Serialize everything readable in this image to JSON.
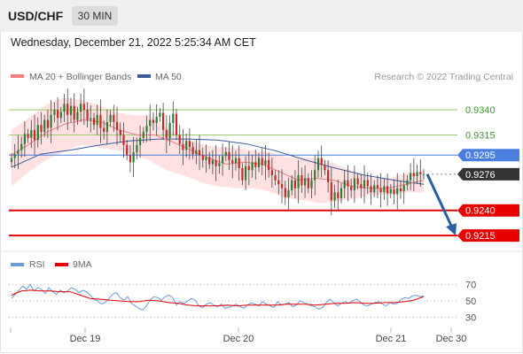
{
  "header": {
    "symbol": "USD/CHF",
    "timeframe": "30 MIN",
    "datetime": "Wednesday, December 21, 2022 5:25:34 AM CET"
  },
  "legend": {
    "ma20_label": "MA 20 + Bollinger Bands",
    "ma50_label": "MA 50",
    "credit": "Research © 2022 Trading Central",
    "rsi_label": "RSI",
    "ma9_label": "9MA"
  },
  "colors": {
    "candle_up": "#2e7d32",
    "candle_down": "#c62828",
    "bollinger_band": "#ffd9d9",
    "ma20": "#f08080",
    "ma50": "#3a5ba0",
    "resistance": "#9acd6e",
    "pivot": "#4a7fe0",
    "support": "#e60000",
    "current_price": "#333333",
    "rsi": "#6a9bd8",
    "rsi_ma9": "#e60000",
    "forecast_arrow": "#2a5fa8"
  },
  "chart_data": [
    {
      "type": "candlestick",
      "title": "USD/CHF 30 MIN",
      "x_ticks": [
        "Dec 19",
        "Dec 20",
        "Dec 21",
        "Dec 30"
      ],
      "ylim": [
        0.9201,
        0.9363
      ],
      "current_price": 0.9276,
      "levels": [
        {
          "label": "0.9340",
          "value": 0.934,
          "kind": "resistance"
        },
        {
          "label": "0.9315",
          "value": 0.9315,
          "kind": "resistance"
        },
        {
          "label": "0.9295",
          "value": 0.9295,
          "kind": "pivot"
        },
        {
          "label": "0.9276",
          "value": 0.9276,
          "kind": "current"
        },
        {
          "label": "0.9240",
          "value": 0.924,
          "kind": "support"
        },
        {
          "label": "0.9215",
          "value": 0.9215,
          "kind": "support"
        }
      ],
      "forecast_arrow": {
        "from": 0.9276,
        "to": 0.9215
      },
      "close_series": [
        0.9292,
        0.9296,
        0.93,
        0.9306,
        0.9316,
        0.9312,
        0.932,
        0.931,
        0.9325,
        0.9318,
        0.933,
        0.9322,
        0.9335,
        0.934,
        0.9332,
        0.9338,
        0.9346,
        0.9335,
        0.9344,
        0.933,
        0.9338,
        0.9346,
        0.934,
        0.933,
        0.9332,
        0.9325,
        0.9335,
        0.9322,
        0.9318,
        0.9328,
        0.9335,
        0.9328,
        0.932,
        0.9315,
        0.9305,
        0.9295,
        0.9288,
        0.9298,
        0.9305,
        0.9312,
        0.9318,
        0.9324,
        0.933,
        0.9327,
        0.9333,
        0.9337,
        0.932,
        0.9312,
        0.9327,
        0.9336,
        0.9315,
        0.9306,
        0.93,
        0.9309,
        0.9303,
        0.9296,
        0.93,
        0.9295,
        0.929,
        0.9293,
        0.9286,
        0.929,
        0.9284,
        0.9287,
        0.9294,
        0.9298,
        0.929,
        0.9287,
        0.9292,
        0.9282,
        0.927,
        0.9284,
        0.928,
        0.9288,
        0.9283,
        0.9292,
        0.9285,
        0.929,
        0.928,
        0.9275,
        0.927,
        0.9266,
        0.9262,
        0.9253,
        0.926,
        0.927,
        0.9262,
        0.9275,
        0.9265,
        0.9272,
        0.9262,
        0.927,
        0.928,
        0.9292,
        0.9285,
        0.928,
        0.9268,
        0.925,
        0.9258,
        0.9252,
        0.9262,
        0.927,
        0.9264,
        0.926,
        0.9272,
        0.9266,
        0.9262,
        0.927,
        0.9264,
        0.9258,
        0.9265,
        0.9262,
        0.9258,
        0.9264,
        0.9257,
        0.9261,
        0.9256,
        0.9262,
        0.9259,
        0.9265,
        0.927,
        0.9277,
        0.9274,
        0.9278,
        0.9276,
        0.9276
      ],
      "ma50_series": [
        0.9283,
        0.9296,
        0.93,
        0.9305,
        0.9309,
        0.9311,
        0.9311,
        0.931,
        0.9306,
        0.9299,
        0.929,
        0.9282,
        0.9275,
        0.927,
        0.9266
      ],
      "ma20_series": [
        0.9295,
        0.9306,
        0.9318,
        0.9326,
        0.933,
        0.9328,
        0.932,
        0.9315,
        0.9315,
        0.9308,
        0.93,
        0.9292,
        0.9286,
        0.9288,
        0.9286,
        0.9278,
        0.927,
        0.9272,
        0.927,
        0.9264,
        0.9262,
        0.9262,
        0.9266,
        0.927
      ],
      "bollinger_upper": [
        0.932,
        0.9332,
        0.9345,
        0.9352,
        0.935,
        0.9345,
        0.9338,
        0.9335,
        0.9335,
        0.9322,
        0.9312,
        0.9306,
        0.9303,
        0.9302,
        0.93,
        0.9298,
        0.9293,
        0.9293,
        0.9292,
        0.9285,
        0.9278,
        0.9272,
        0.9272,
        0.9277,
        0.9279
      ],
      "bollinger_lower": [
        0.9264,
        0.9278,
        0.929,
        0.9298,
        0.9305,
        0.9303,
        0.93,
        0.9296,
        0.929,
        0.928,
        0.9275,
        0.9268,
        0.9264,
        0.9262,
        0.9262,
        0.9259,
        0.9252,
        0.925,
        0.9247,
        0.9249,
        0.9252,
        0.9255,
        0.9256,
        0.9258,
        0.9258
      ]
    },
    {
      "type": "line",
      "title": "RSI",
      "ylim": [
        20,
        80
      ],
      "y_ticks": [
        "70",
        "50",
        "30"
      ],
      "series": [
        {
          "name": "RSI",
          "values": [
            53,
            58,
            63,
            68,
            64,
            70,
            62,
            66,
            64,
            59,
            66,
            61,
            58,
            63,
            60,
            62,
            66,
            64,
            60,
            63,
            61,
            57,
            52,
            50,
            46,
            48,
            53,
            58,
            60,
            54,
            51,
            55,
            47,
            44,
            41,
            39,
            44,
            51,
            55,
            54,
            51,
            55,
            57,
            54,
            45,
            49,
            47,
            50,
            53,
            51,
            44,
            42,
            46,
            48,
            45,
            43,
            46,
            41,
            42,
            44,
            46,
            43,
            41,
            45,
            48,
            46,
            44,
            49,
            46,
            44,
            42,
            49,
            45,
            46,
            48,
            43,
            45,
            50,
            48,
            46,
            44,
            43,
            40,
            42,
            48,
            52,
            48,
            44,
            47,
            49,
            47,
            50,
            52,
            49,
            45,
            44,
            46,
            48,
            49,
            46,
            44,
            48,
            46,
            47,
            52,
            54,
            53,
            56,
            57,
            55,
            56
          ]
        },
        {
          "name": "9MA",
          "values": [
            57,
            62,
            63,
            62,
            62,
            61,
            61,
            57,
            53,
            52,
            51,
            50,
            49,
            49,
            51,
            50,
            48,
            47,
            45,
            44,
            44,
            44,
            45,
            44,
            45,
            45,
            45,
            45,
            46,
            46,
            46,
            45,
            46,
            47,
            47,
            48,
            47,
            47,
            48,
            48,
            49,
            51,
            55
          ]
        }
      ]
    }
  ]
}
